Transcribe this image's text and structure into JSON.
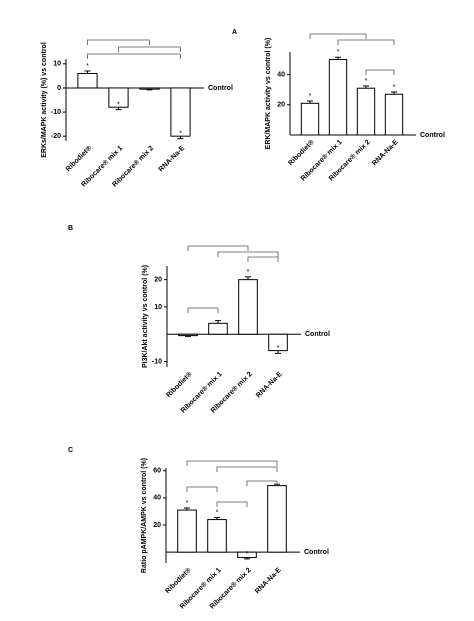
{
  "chart_data": [
    {
      "type": "bar",
      "panel": "A",
      "y_label": "ERKs/MAPK activity (%) vs control",
      "baseline_label": "Control",
      "categories": [
        "Ribodiet®",
        "Ribocare® mix 1",
        "Ribocare® mix 2",
        "RNA-Na-E"
      ],
      "values": [
        6,
        -8,
        -0.5,
        -20
      ],
      "errors": [
        1,
        1,
        0.3,
        1
      ],
      "annotations": [
        "*",
        "*",
        null,
        "*"
      ],
      "ylim": [
        -22,
        12
      ],
      "yticks": [
        10,
        0,
        -10,
        -20
      ],
      "color": "#ffffff"
    },
    {
      "type": "bar",
      "y_label": "ERK/MAPK activity vs control (%)",
      "baseline_label": "Control",
      "categories": [
        "Ribodiet®",
        "Ribocare® mix 1",
        "Ribocare® mix 2",
        "RNA-Na-E"
      ],
      "values": [
        21,
        50,
        31,
        27
      ],
      "errors": [
        1.5,
        1.5,
        1.5,
        1.5
      ],
      "annotations": [
        "*",
        "*",
        "*",
        "*"
      ],
      "ylim": [
        0,
        55
      ],
      "yticks": [
        20,
        40
      ],
      "color": "#ffffff"
    },
    {
      "type": "bar",
      "panel": "B",
      "y_label": "PI3K/Akt activity vs control (%)",
      "baseline_label": "Control",
      "categories": [
        "Ribodiet®",
        "Ribocare® mix 1",
        "Ribocare® mix 2",
        "RNA-Na-E"
      ],
      "values": [
        -0.5,
        4,
        20,
        -6
      ],
      "errors": [
        0.3,
        1,
        1,
        1
      ],
      "annotations": [
        null,
        null,
        "*",
        "*"
      ],
      "ylim": [
        -12,
        25
      ],
      "yticks": [
        20,
        10,
        -10
      ],
      "color": "#ffffff"
    },
    {
      "type": "bar",
      "panel": "C",
      "y_label": "Ratio pAMPK/AMPK vs control (%)",
      "baseline_label": "Control",
      "categories": [
        "Ribodiet®",
        "Ribocare® mix 1",
        "Ribocare® mix 2",
        "RNA-Na-E"
      ],
      "values": [
        31,
        24,
        -4,
        49
      ],
      "errors": [
        1.5,
        1.5,
        1,
        1
      ],
      "annotations": [
        "*",
        "*",
        "*",
        null
      ],
      "ylim": [
        -8,
        62
      ],
      "yticks": [
        60,
        40,
        20
      ],
      "color": "#ffffff"
    }
  ]
}
